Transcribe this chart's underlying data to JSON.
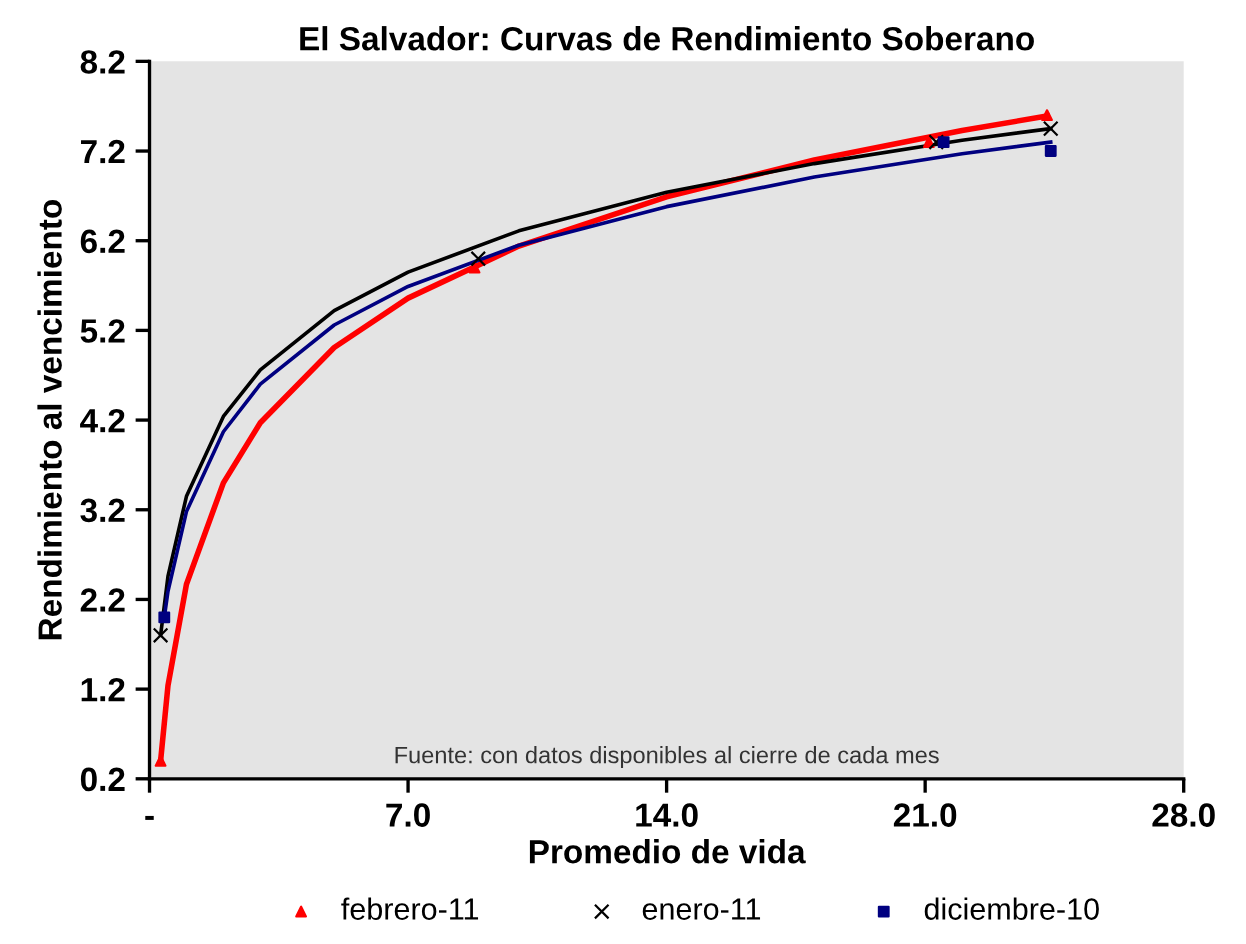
{
  "chart_data": {
    "type": "scatter",
    "title": "El Salvador: Curvas de Rendimiento Soberano",
    "xlabel": "Promedio de vida",
    "ylabel": "Rendimiento al vencimiento",
    "annotations": [
      "Fuente: con datos disponibles al cierre de cada mes"
    ],
    "xlim": [
      0,
      28
    ],
    "xticks": [
      {
        "value": 0,
        "label": "-"
      },
      {
        "value": 7,
        "label": "7.0"
      },
      {
        "value": 14,
        "label": "14.0"
      },
      {
        "value": 21,
        "label": "21.0"
      },
      {
        "value": 28,
        "label": "28.0"
      }
    ],
    "ylim": [
      0.2,
      8.2
    ],
    "yticks": [
      0.2,
      1.2,
      2.2,
      3.2,
      4.2,
      5.2,
      6.2,
      7.2,
      8.2
    ],
    "grid": false,
    "legend": "bottom",
    "series": [
      {
        "name": "febrero-11",
        "marker": "triangle",
        "color": "#ff0000",
        "x": [
          0.3,
          8.8,
          21.1,
          24.3
        ],
        "values": [
          0.4,
          5.9,
          7.3,
          7.6
        ]
      },
      {
        "name": "enero-11",
        "marker": "cross",
        "color": "#000000",
        "x": [
          0.3,
          8.9,
          21.3,
          24.4
        ],
        "values": [
          1.8,
          6.0,
          7.3,
          7.45
        ]
      },
      {
        "name": "diciembre-10",
        "marker": "square",
        "color": "#000080",
        "x": [
          0.4,
          8.8,
          21.5,
          24.4
        ],
        "values": [
          2.0,
          null,
          7.3,
          7.2
        ]
      },
      {
        "type": "line",
        "color": "#ff0000",
        "x": [
          0.3,
          0.5,
          1,
          2,
          3,
          5,
          7,
          10,
          14,
          18,
          22,
          24.3
        ],
        "values": [
          0.4,
          1.24,
          2.37,
          3.5,
          4.17,
          5.01,
          5.56,
          6.14,
          6.69,
          7.1,
          7.43,
          7.59
        ]
      },
      {
        "type": "line",
        "color": "#000000",
        "x": [
          0.3,
          0.5,
          1,
          2,
          3,
          5,
          7,
          10,
          14,
          18,
          22,
          24.4
        ],
        "values": [
          1.8,
          2.46,
          3.35,
          4.24,
          4.76,
          5.42,
          5.85,
          6.31,
          6.74,
          7.06,
          7.32,
          7.45
        ]
      },
      {
        "type": "line",
        "color": "#000080",
        "x": [
          0.4,
          0.5,
          1,
          2,
          3,
          5,
          7,
          10,
          14,
          18,
          22,
          24.4
        ],
        "values": [
          2.0,
          2.29,
          3.18,
          4.07,
          4.6,
          5.26,
          5.69,
          6.15,
          6.58,
          6.91,
          7.17,
          7.3
        ]
      }
    ]
  }
}
